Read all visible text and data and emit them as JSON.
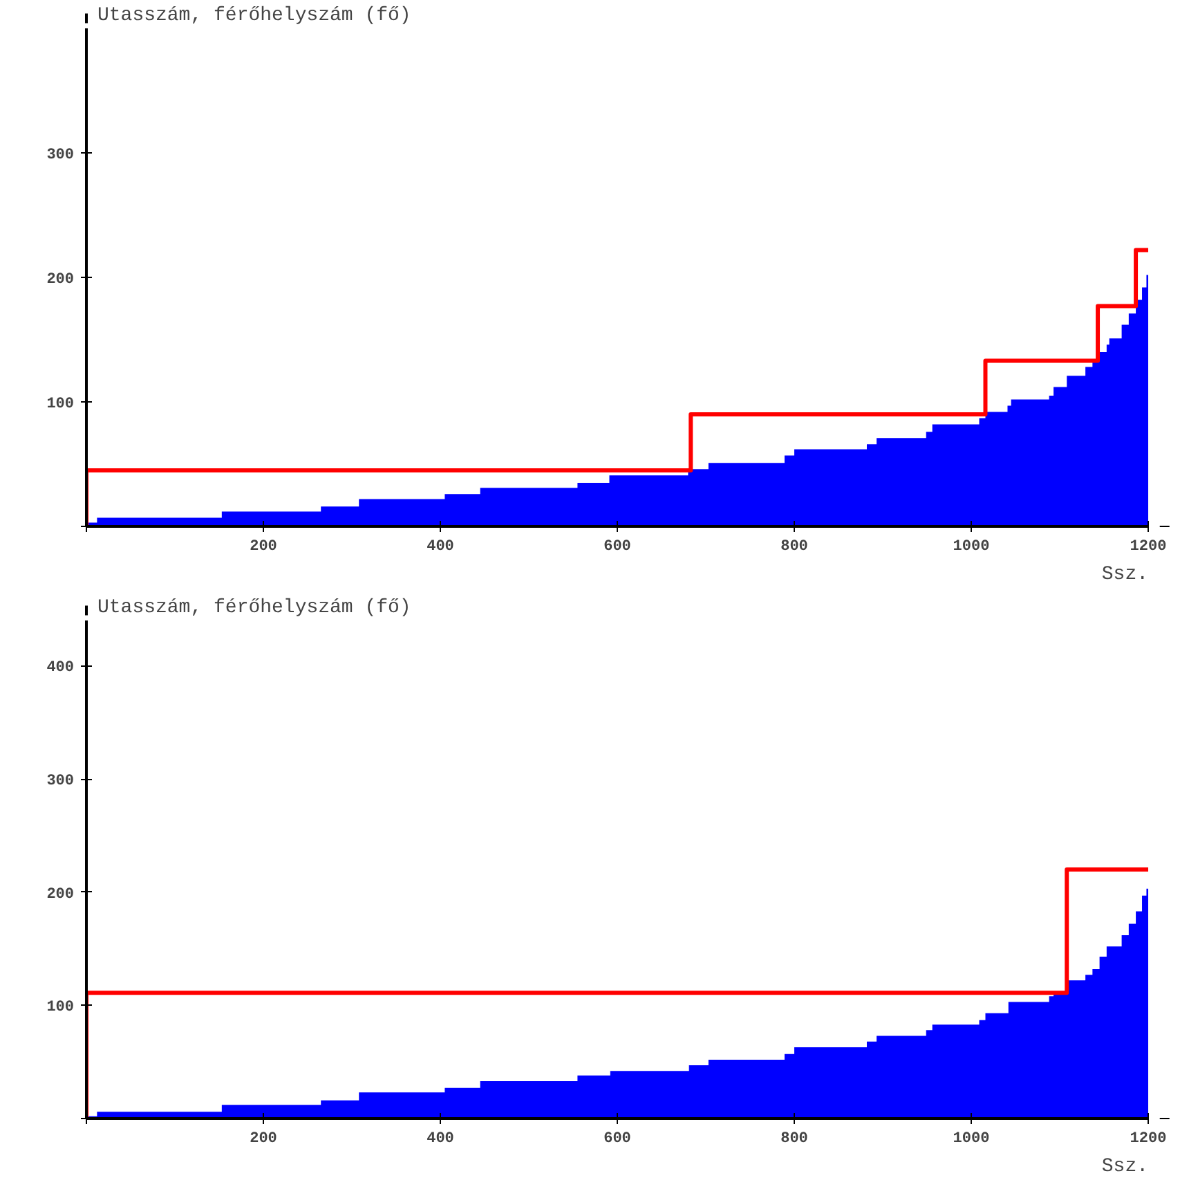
{
  "chart_data": [
    {
      "type": "area",
      "ylabel": "Utasszám, férőhelyszám (fő)",
      "xlabel": "Ssz.",
      "xlim": [
        0,
        1200
      ],
      "ylim": [
        0,
        400
      ],
      "xticks": [
        {
          "value": 0,
          "label": null
        },
        200,
        400,
        600,
        800,
        1000,
        1200
      ],
      "yticks": [
        {
          "value": 0,
          "label": null
        },
        100,
        200,
        300
      ],
      "grid": false,
      "line_style": "solid",
      "series": [
        {
          "color": "#0000ff",
          "x": [
            0,
            12,
            12,
            153,
            153,
            265,
            265,
            308,
            308,
            405,
            405,
            445,
            445,
            555,
            555,
            591,
            591,
            680,
            680,
            703,
            703,
            789,
            789,
            800,
            800,
            882,
            882,
            893,
            893,
            949,
            949,
            956,
            956,
            1009,
            1009,
            1016,
            1016,
            1041,
            1041,
            1045,
            1045,
            1088,
            1088,
            1093,
            1093,
            1108,
            1108,
            1129,
            1129,
            1137,
            1137,
            1145,
            1145,
            1153,
            1153,
            1156,
            1156,
            1170,
            1170,
            1178,
            1178,
            1186,
            1186,
            1193,
            1193,
            1198,
            1198,
            1200
          ],
          "values": [
            3,
            3,
            7,
            7,
            12,
            12,
            16,
            16,
            22,
            22,
            26,
            26,
            31,
            31,
            35,
            35,
            41,
            41,
            46,
            46,
            51,
            51,
            57,
            57,
            62,
            62,
            66,
            66,
            71,
            71,
            76,
            76,
            82,
            82,
            87,
            87,
            92,
            92,
            97,
            97,
            102,
            102,
            105,
            105,
            112,
            112,
            121,
            121,
            128,
            128,
            133,
            133,
            140,
            140,
            146,
            146,
            151,
            151,
            162,
            162,
            171,
            171,
            182,
            182,
            192,
            192,
            202,
            202
          ]
        },
        {
          "type": "line",
          "color": "#ff0000",
          "x": [
            0,
            0,
            683,
            683,
            1016,
            1016,
            1143,
            1143,
            1186,
            1186,
            1200
          ],
          "values": [
            0,
            45,
            45,
            90,
            90,
            133,
            133,
            177,
            177,
            222,
            222
          ]
        }
      ]
    },
    {
      "type": "area",
      "ylabel": "Utasszám, férőhelyszám (fő)",
      "xlabel": "Ssz.",
      "xlim": [
        0,
        1200
      ],
      "ylim": [
        0,
        440
      ],
      "xticks": [
        {
          "value": 0,
          "label": null
        },
        200,
        400,
        600,
        800,
        1000,
        1200
      ],
      "yticks": [
        {
          "value": 0,
          "label": null
        },
        100,
        200,
        300,
        400
      ],
      "grid": false,
      "line_style": "solid",
      "series": [
        {
          "color": "#0000ff",
          "x": [
            0,
            12,
            12,
            153,
            153,
            265,
            265,
            308,
            308,
            405,
            405,
            445,
            445,
            555,
            555,
            592,
            592,
            681,
            681,
            703,
            703,
            789,
            789,
            800,
            800,
            882,
            882,
            893,
            893,
            949,
            949,
            956,
            956,
            1009,
            1009,
            1016,
            1016,
            1042,
            1042,
            1088,
            1088,
            1093,
            1093,
            1108,
            1108,
            1129,
            1129,
            1137,
            1137,
            1145,
            1145,
            1153,
            1153,
            1170,
            1170,
            1178,
            1178,
            1186,
            1186,
            1193,
            1193,
            1198,
            1198,
            1200
          ],
          "values": [
            2,
            2,
            6,
            6,
            12,
            12,
            16,
            16,
            23,
            23,
            27,
            27,
            33,
            33,
            38,
            38,
            42,
            42,
            47,
            47,
            52,
            52,
            57,
            57,
            63,
            63,
            68,
            68,
            73,
            73,
            78,
            78,
            83,
            83,
            87,
            87,
            93,
            93,
            103,
            103,
            108,
            108,
            111,
            111,
            122,
            122,
            127,
            127,
            132,
            132,
            143,
            143,
            152,
            152,
            162,
            162,
            172,
            172,
            183,
            183,
            197,
            197,
            203,
            203
          ]
        },
        {
          "type": "line",
          "color": "#ff0000",
          "x": [
            0,
            0,
            1108,
            1108,
            1200
          ],
          "values": [
            0,
            111,
            111,
            220,
            220
          ]
        }
      ]
    }
  ]
}
